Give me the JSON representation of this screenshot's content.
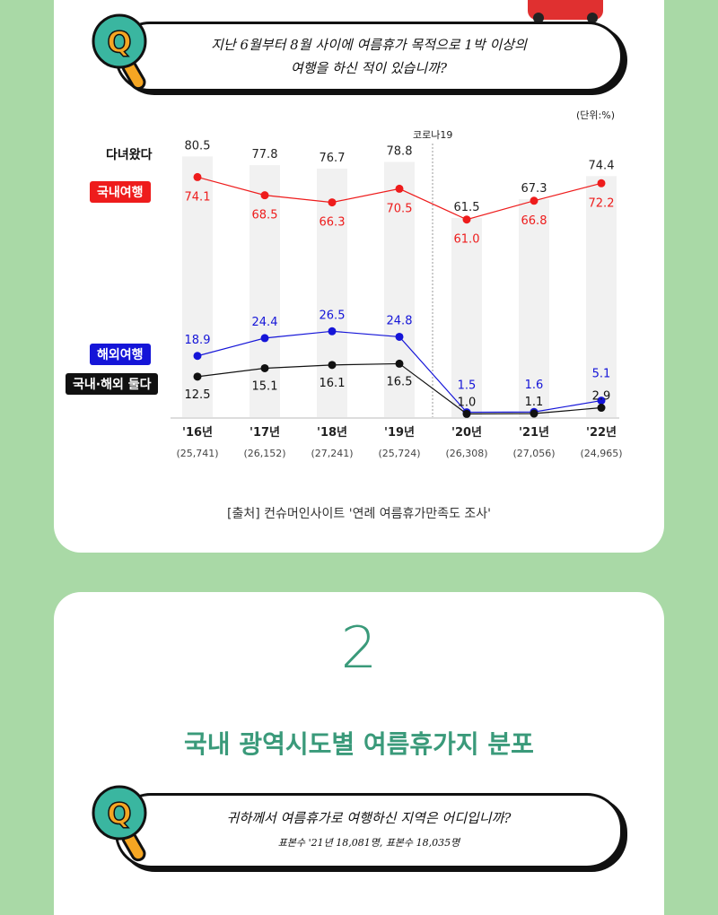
{
  "q1": {
    "line1": "지난 6월부터 8월 사이에 여름휴가 목적으로 1박 이상의",
    "line2": "여행을 하신 적이 있습니까?"
  },
  "unit": "(단위:%)",
  "corona_label": "코로나19",
  "legend": {
    "total": "다녀왔다",
    "domestic": "국내여행",
    "overseas": "해외여행",
    "both": "국내·해외 둘다"
  },
  "colors": {
    "domestic": "#ee1c1c",
    "overseas": "#1515d8",
    "both": "#111111",
    "bar": "#f1f1f1"
  },
  "chart_data": {
    "type": "line",
    "categories": [
      "'16년",
      "'17년",
      "'18년",
      "'19년",
      "'20년",
      "'21년",
      "'22년"
    ],
    "sample_sizes": [
      "(25,741)",
      "(26,152)",
      "(27,241)",
      "(25,724)",
      "(26,308)",
      "(27,056)",
      "(24,965)"
    ],
    "totals": [
      80.5,
      77.8,
      76.7,
      78.8,
      61.5,
      67.3,
      74.4
    ],
    "series": [
      {
        "name": "국내여행",
        "values": [
          74.1,
          68.5,
          66.3,
          70.5,
          61.0,
          66.8,
          72.2
        ]
      },
      {
        "name": "해외여행",
        "values": [
          18.9,
          24.4,
          26.5,
          24.8,
          1.5,
          1.6,
          5.1
        ]
      },
      {
        "name": "국내·해외 둘다",
        "values": [
          12.5,
          15.1,
          16.1,
          16.5,
          1.0,
          1.1,
          2.9
        ]
      }
    ],
    "ylim": [
      0,
      90
    ]
  },
  "source": "[출처] 컨슈머인사이트 '연례 여름휴가만족도 조사'",
  "section": {
    "number": "2",
    "title": "국내 광역시도별 여름휴가지 분포"
  },
  "q2": {
    "line1": "귀하께서 여름휴가로 여행하신 지역은 어디입니까?",
    "line2": "표본수 '21년 18,081명, 표본수 18,035명"
  }
}
